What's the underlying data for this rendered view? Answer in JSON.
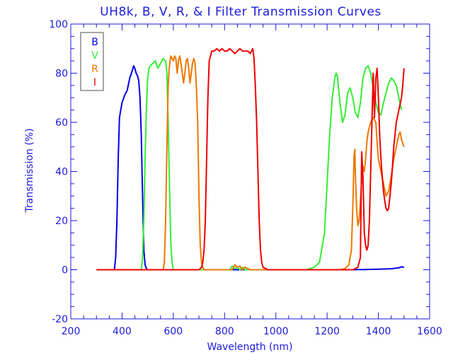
{
  "chart_data": {
    "type": "line",
    "title": "UH8k, B, V, R, & I Filter Transmission Curves",
    "xlabel": "Wavelength (nm)",
    "ylabel": "Transmission (%)",
    "xlim": [
      200,
      1600
    ],
    "ylim": [
      -20,
      100
    ],
    "xticks": [
      200,
      400,
      600,
      800,
      1000,
      1200,
      1400,
      1600
    ],
    "yticks": [
      -20,
      0,
      20,
      40,
      60,
      80,
      100
    ],
    "x_minor_step": 50,
    "y_minor_step": 5,
    "grid": false,
    "legend_position": "top-left",
    "axis_color": "#1a1adc",
    "series": [
      {
        "name": "B",
        "color": "#0000ee",
        "x": [
          300,
          370,
          375,
          380,
          385,
          390,
          400,
          410,
          420,
          430,
          440,
          445,
          450,
          455,
          460,
          465,
          470,
          475,
          480,
          485,
          490,
          495,
          500,
          510,
          600,
          800,
          1000,
          1200,
          1300,
          1400,
          1450,
          1480,
          1490,
          1500
        ],
        "y": [
          0,
          0,
          5,
          20,
          45,
          62,
          68,
          71,
          73,
          78,
          81,
          83,
          82,
          80,
          79,
          77,
          70,
          55,
          30,
          8,
          2,
          0.5,
          0,
          0,
          0,
          0,
          0,
          0,
          0,
          0.2,
          0.4,
          0.8,
          1.2,
          1
        ]
      },
      {
        "name": "V",
        "color": "#33ee33",
        "x": [
          300,
          475,
          480,
          485,
          490,
          495,
          500,
          505,
          510,
          520,
          530,
          540,
          550,
          560,
          570,
          575,
          580,
          585,
          590,
          595,
          600,
          610,
          800,
          820,
          830,
          840,
          850,
          860,
          870,
          880,
          900,
          1000,
          1120,
          1150,
          1170,
          1190,
          1200,
          1210,
          1220,
          1230,
          1235,
          1240,
          1250,
          1260,
          1270,
          1280,
          1290,
          1300,
          1310,
          1320,
          1330,
          1340,
          1350,
          1360,
          1370,
          1380,
          1390,
          1400,
          1410,
          1420,
          1430,
          1440,
          1450,
          1460,
          1470,
          1480,
          1490
        ],
        "y": [
          0,
          0,
          5,
          20,
          45,
          65,
          78,
          82,
          83,
          84,
          85,
          82,
          84,
          86,
          85,
          80,
          60,
          35,
          12,
          3,
          0,
          0,
          0,
          0,
          1.5,
          0.5,
          1,
          0,
          1,
          0,
          0,
          0,
          0,
          1,
          3,
          15,
          35,
          55,
          70,
          78,
          80,
          79,
          68,
          60,
          63,
          72,
          74,
          70,
          64,
          62,
          68,
          78,
          82,
          83,
          80,
          74,
          68,
          64,
          63,
          68,
          72,
          76,
          78,
          77,
          75,
          70,
          65
        ]
      },
      {
        "name": "R",
        "color": "#ee7700",
        "x": [
          300,
          560,
          565,
          570,
          575,
          580,
          585,
          590,
          595,
          600,
          605,
          610,
          615,
          620,
          625,
          630,
          635,
          640,
          645,
          650,
          655,
          660,
          665,
          670,
          675,
          680,
          685,
          690,
          695,
          700,
          705,
          710,
          715,
          720,
          730,
          800,
          820,
          830,
          840,
          850,
          860,
          870,
          880,
          900,
          1000,
          1250,
          1270,
          1285,
          1295,
          1300,
          1305,
          1308,
          1310,
          1315,
          1320,
          1325,
          1330,
          1335,
          1340,
          1345,
          1350,
          1355,
          1360,
          1370,
          1380,
          1390,
          1395,
          1400,
          1410,
          1420,
          1430,
          1440,
          1450,
          1460,
          1470,
          1480,
          1485,
          1490,
          1500
        ],
        "y": [
          0,
          0,
          3,
          20,
          50,
          75,
          83,
          87,
          86,
          85,
          87,
          86,
          80,
          85,
          87,
          84,
          80,
          76,
          80,
          85,
          86,
          82,
          76,
          80,
          84,
          86,
          84,
          75,
          60,
          30,
          10,
          3,
          1,
          0,
          0,
          0,
          0,
          0,
          2,
          1,
          1.5,
          0,
          1,
          0,
          0,
          0,
          0.5,
          2,
          8,
          25,
          46,
          49,
          40,
          25,
          18,
          20,
          28,
          36,
          42,
          40,
          45,
          52,
          56,
          60,
          62,
          60,
          52,
          45,
          40,
          35,
          30,
          32,
          38,
          45,
          50,
          55,
          56,
          53,
          50
        ]
      },
      {
        "name": "I",
        "color": "#ee0000",
        "x": [
          300,
          700,
          710,
          715,
          720,
          725,
          730,
          735,
          740,
          750,
          760,
          770,
          780,
          790,
          800,
          810,
          820,
          830,
          840,
          850,
          860,
          870,
          880,
          890,
          900,
          905,
          910,
          915,
          920,
          925,
          930,
          935,
          940,
          945,
          950,
          960,
          970,
          1000,
          1200,
          1300,
          1320,
          1330,
          1335,
          1340,
          1345,
          1350,
          1355,
          1360,
          1365,
          1370,
          1375,
          1380,
          1385,
          1390,
          1395,
          1400,
          1405,
          1410,
          1415,
          1420,
          1425,
          1430,
          1435,
          1440,
          1445,
          1450,
          1455,
          1460,
          1470,
          1480,
          1490,
          1495,
          1500
        ],
        "y": [
          0,
          0,
          1,
          3,
          8,
          20,
          45,
          70,
          85,
          89,
          89,
          90,
          89,
          90,
          89,
          89,
          90,
          89,
          88,
          89,
          90,
          89,
          89,
          89,
          88,
          89,
          90,
          86,
          75,
          60,
          40,
          20,
          8,
          3,
          1,
          0.5,
          0,
          0,
          0,
          0,
          1,
          5,
          48,
          38,
          15,
          10,
          8,
          10,
          20,
          40,
          60,
          80,
          62,
          78,
          82,
          70,
          55,
          45,
          38,
          32,
          28,
          25,
          24,
          25,
          30,
          35,
          42,
          50,
          60,
          65,
          70,
          75,
          82
        ]
      }
    ]
  }
}
